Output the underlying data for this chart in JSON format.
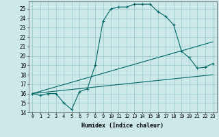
{
  "xlabel": "Humidex (Indice chaleur)",
  "ylabel": "",
  "background_color": "#cce8e8",
  "grid_color": "#9ecece",
  "line_color": "#006666",
  "xlim": [
    -0.5,
    23.5
  ],
  "ylim": [
    14,
    25.8
  ],
  "yticks": [
    14,
    15,
    16,
    17,
    18,
    19,
    20,
    21,
    22,
    23,
    24,
    25
  ],
  "xticks": [
    0,
    1,
    2,
    3,
    4,
    5,
    6,
    7,
    8,
    9,
    10,
    11,
    12,
    13,
    14,
    15,
    16,
    17,
    18,
    19,
    20,
    21,
    22,
    23
  ],
  "series1_x": [
    0,
    1,
    2,
    3,
    4,
    5,
    6,
    7,
    8,
    9,
    10,
    11,
    12,
    13,
    14,
    15,
    16,
    17,
    18,
    19,
    20,
    21,
    22,
    23
  ],
  "series1_y": [
    16.0,
    15.8,
    16.0,
    16.0,
    15.0,
    14.3,
    16.2,
    16.5,
    19.0,
    23.7,
    25.0,
    25.2,
    25.2,
    25.5,
    25.5,
    25.5,
    24.7,
    24.2,
    23.3,
    20.5,
    19.8,
    18.7,
    18.8,
    19.2
  ],
  "series2_x": [
    0,
    23
  ],
  "series2_y": [
    16.0,
    21.5
  ],
  "series3_x": [
    0,
    23
  ],
  "series3_y": [
    16.0,
    18.0
  ],
  "marker_style": "+",
  "marker_size": 3,
  "line_width": 0.8
}
